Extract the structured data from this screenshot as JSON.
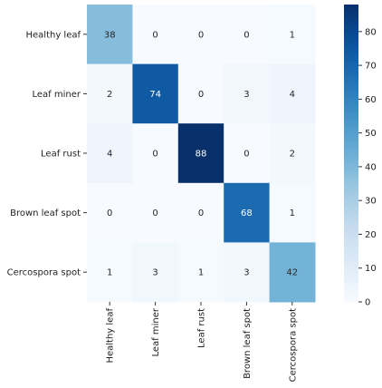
{
  "chart_data": {
    "type": "heatmap",
    "row_labels": [
      "Healthy leaf",
      "Leaf miner",
      "Leaf rust",
      "Brown leaf spot",
      "Cercospora spot"
    ],
    "col_labels": [
      "Healthy leaf",
      "Leaf miner",
      "Leaf rust",
      "Brown leaf spot",
      "Cercospora spot"
    ],
    "matrix": [
      [
        38,
        0,
        0,
        0,
        1
      ],
      [
        2,
        74,
        0,
        3,
        4
      ],
      [
        4,
        0,
        88,
        0,
        2
      ],
      [
        0,
        0,
        0,
        68,
        1
      ],
      [
        1,
        3,
        1,
        3,
        42
      ]
    ],
    "vmin": 0,
    "vmax": 88,
    "colormap": "Blues",
    "colorbar": {
      "ticks": [
        0,
        10,
        20,
        30,
        40,
        50,
        60,
        70,
        80
      ],
      "placement": "right"
    },
    "title": "",
    "xlabel": "",
    "ylabel": ""
  }
}
